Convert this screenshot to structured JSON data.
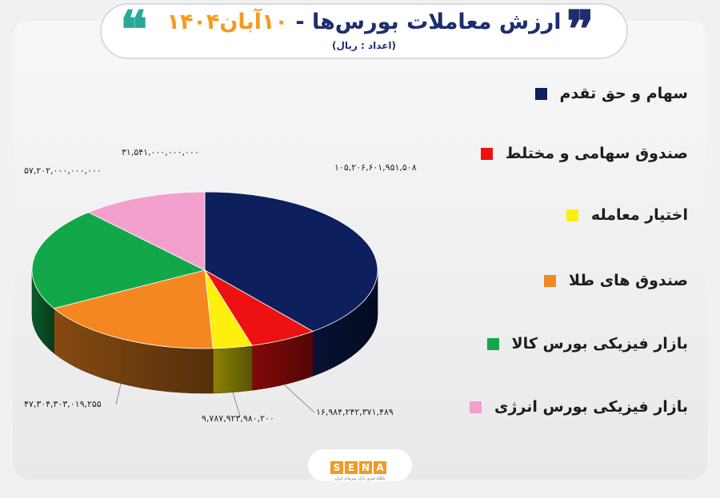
{
  "header": {
    "title_main": "ارزش معاملات بورس‌ها -",
    "title_date": "۱۰آبان۱۴۰۴",
    "subtitle": "(اعداد : ریال)"
  },
  "colors": {
    "navy": "#0d1f5c",
    "red": "#ee1111",
    "yellow": "#ffef0c",
    "orange": "#f4871f",
    "green": "#12a84a",
    "pink": "#f3a0cf",
    "title_blue": "#1d2e6e",
    "accent_orange": "#f39a21",
    "teal": "#2aa79b"
  },
  "chart_data": {
    "type": "pie",
    "title": "ارزش معاملات بورس‌ها - ۱۰آبان۱۴۰۴",
    "subtitle": "(اعداد : ریال)",
    "legend_position": "right",
    "series": [
      {
        "name": "سهام و حق تقدم",
        "value": 105206601951508,
        "label": "۱۰۵,۲۰۶,۶۰۱,۹۵۱,۵۰۸",
        "color": "#0d1f5c"
      },
      {
        "name": "صندوق سهامی و مختلط",
        "value": 16984242371489,
        "label": "۱۶,۹۸۴,۲۴۲,۳۷۱,۴۸۹",
        "color": "#ee1111"
      },
      {
        "name": "اختیار معامله",
        "value": 9787923980200,
        "label": "۹,۷۸۷,۹۲۳,۹۸۰,۲۰۰",
        "color": "#ffef0c"
      },
      {
        "name": "صندوق های طلا",
        "value": 47304303019255,
        "label": "۴۷,۳۰۴,۳۰۳,۰۱۹,۲۵۵",
        "color": "#f4871f"
      },
      {
        "name": "بازار فیزیکی بورس کالا",
        "value": 57202000000000,
        "label": "۵۷,۲۰۲,۰۰۰,۰۰۰,۰۰۰",
        "color": "#12a84a"
      },
      {
        "name": "بازار فیزیکی بورس انرژی",
        "value": 31541000000000,
        "label": "۳۱,۵۴۱,۰۰۰,۰۰۰,۰۰۰",
        "color": "#f3a0cf"
      }
    ]
  },
  "footer": {
    "logo_letters": [
      "S",
      "E",
      "N",
      "A"
    ],
    "tagline": "پایگاه خبری بازار سرمایه ایران"
  }
}
